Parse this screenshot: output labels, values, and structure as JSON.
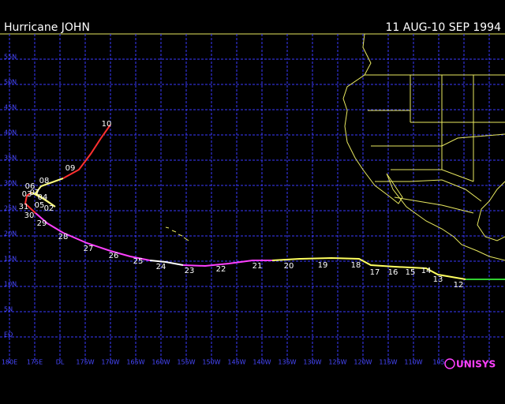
{
  "header": {
    "title": "Hurricane JOHN",
    "dates": "11 AUG-10 SEP 1994"
  },
  "lat_labels": [
    "55N",
    "50N",
    "45N",
    "40N",
    "35N",
    "30N",
    "25N",
    "20N",
    "15N",
    "10N",
    "5N",
    "EQ"
  ],
  "lon_labels": [
    "180E",
    "175E",
    "DL",
    "175W",
    "170W",
    "165W",
    "160W",
    "155W",
    "150W",
    "145W",
    "140W",
    "135W",
    "130W",
    "125W",
    "120W",
    "115W",
    "110W",
    "105"
  ],
  "track_labels": [
    "10",
    "09",
    "08",
    "06",
    "07",
    "03",
    "04",
    "05",
    "02",
    "31",
    "30",
    "29",
    "28",
    "27",
    "26",
    "25",
    "24",
    "23",
    "22",
    "21",
    "20",
    "19",
    "18",
    "17",
    "16",
    "15",
    "14",
    "13",
    "12"
  ],
  "logo": "UNISYS"
}
